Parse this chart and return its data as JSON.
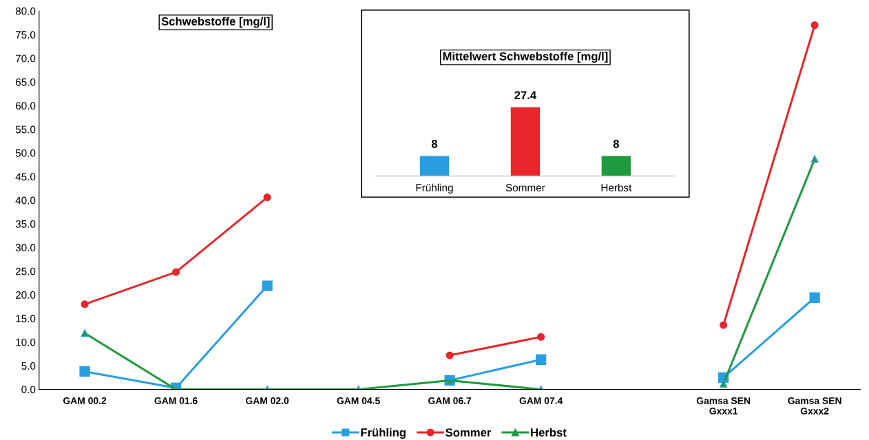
{
  "chart_data": [
    {
      "type": "line",
      "title": "Schwebstoffe [mg/l]",
      "categories": [
        "GAM 00.2",
        "GAM 01.6",
        "GAM 02.0",
        "GAM 04.5",
        "GAM 06.7",
        "GAM 07.4",
        null,
        "Gamsa SEN\nGxxx1",
        "Gamsa SEN\nGxxx2"
      ],
      "series": [
        {
          "name": "Frühling",
          "color": "#2a9fe0",
          "marker": "square",
          "values": [
            3.8,
            0.3,
            21.9,
            null,
            1.9,
            6.3,
            null,
            2.5,
            19.4
          ]
        },
        {
          "name": "Sommer",
          "color": "#e8262b",
          "marker": "circle",
          "values": [
            18.0,
            24.8,
            40.6,
            null,
            7.2,
            11.1,
            null,
            13.6,
            77.0
          ]
        },
        {
          "name": "Herbst",
          "color": "#1f9a3e",
          "marker": "triangle",
          "values": [
            11.9,
            0,
            0,
            0,
            1.9,
            0,
            null,
            1.2,
            48.7
          ]
        }
      ],
      "ylim": [
        0,
        80
      ],
      "yticks": [
        {
          "value": 0,
          "label": "0.0"
        },
        {
          "value": 5,
          "label": "5.0"
        },
        {
          "value": 10,
          "label": "10.0"
        },
        {
          "value": 15,
          "label": "15.0"
        },
        {
          "value": 20,
          "label": "20.0"
        },
        {
          "value": 25,
          "label": "25.0"
        },
        {
          "value": 30,
          "label": "30.0"
        },
        {
          "value": 35,
          "label": "35.0"
        },
        {
          "value": 40,
          "label": "40.0"
        },
        {
          "value": 45,
          "label": "45.0"
        },
        {
          "value": 50,
          "label": "50.0"
        },
        {
          "value": 55,
          "label": "55.0"
        },
        {
          "value": 60,
          "label": "60.0"
        },
        {
          "value": 65,
          "label": "65.0"
        },
        {
          "value": 70,
          "label": "70.0"
        },
        {
          "value": 75,
          "label": "75.0"
        },
        {
          "value": 80,
          "label": "80.0"
        }
      ],
      "grid": false,
      "legend": "bottom",
      "line_style": "solid"
    },
    {
      "type": "bar",
      "title": "Mittelwert Schwebstoffe [mg/l]",
      "categories": [
        "Frühling",
        "Sommer",
        "Herbst"
      ],
      "values": [
        8,
        27.4,
        8
      ],
      "colors": [
        "#2a9fe0",
        "#e8262b",
        "#1f9a3e"
      ],
      "data_labels": true,
      "tick_labels": "x"
    }
  ]
}
